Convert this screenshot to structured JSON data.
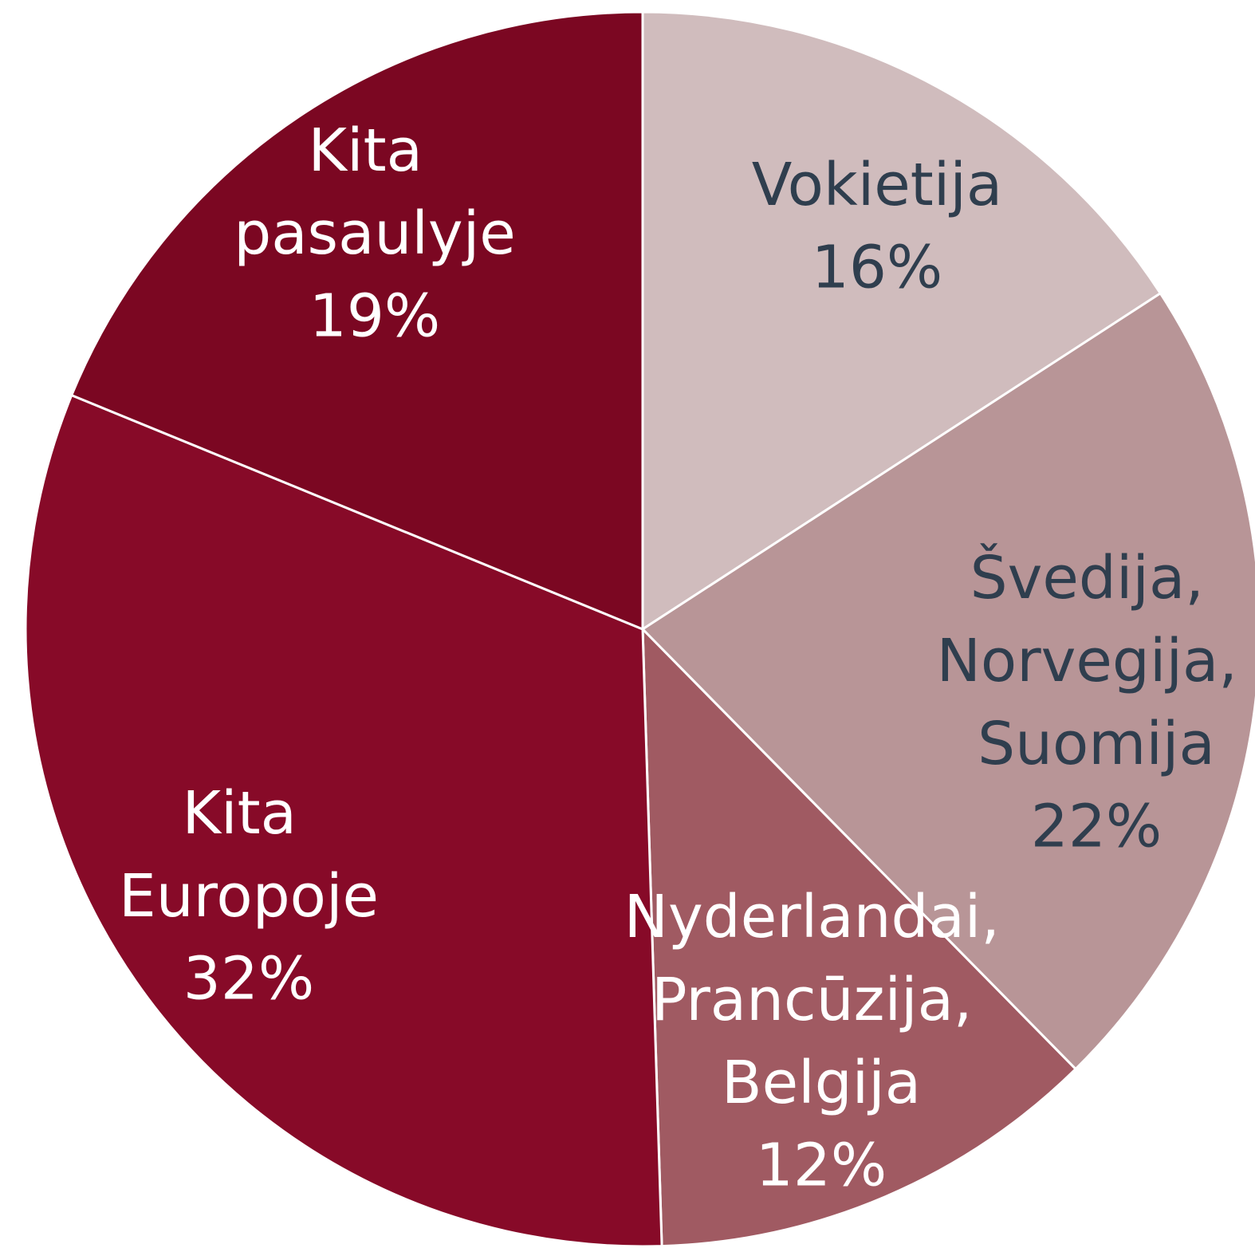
{
  "chart_data": {
    "type": "pie",
    "categories": [
      "Vokietija",
      "Švedija, Norvegija, Suomija",
      "Nyderlandai, Prancūzija, Belgija",
      "Kita Europoje",
      "Kita pasaulyje"
    ],
    "values": [
      16,
      22,
      12,
      32,
      19
    ],
    "value_labels": [
      "16%",
      "22%",
      "12%",
      "32%",
      "19%"
    ],
    "colors": [
      "#d0bcbd",
      "#b89597",
      "#a05a62",
      "#870a28",
      "#7b0722"
    ]
  }
}
